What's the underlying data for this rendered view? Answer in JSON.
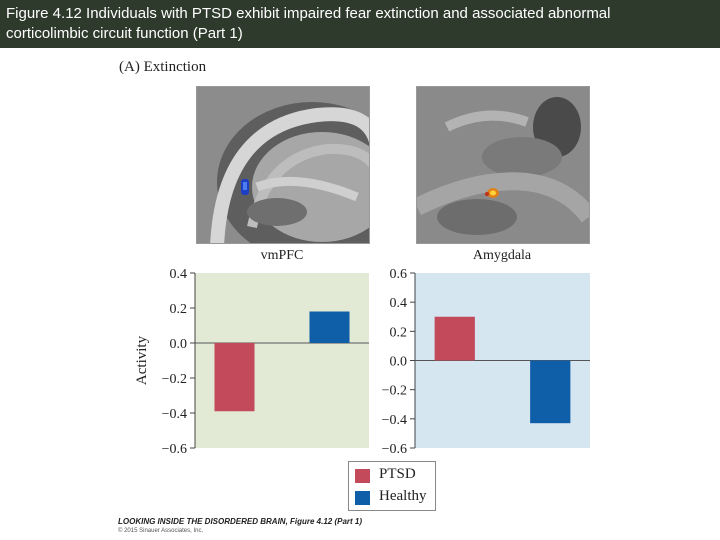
{
  "header": {
    "title_line1": "Figure 4.12 Individuals with PTSD exhibit impaired fear extinction and associated abnormal",
    "title_line2": "corticolimbic circuit function (Part 1)"
  },
  "panel_label": "(A) Extinction",
  "colors": {
    "ptsd": "#c24a5a",
    "healthy": "#0f5ea8",
    "vmpfc_bg": "#e2ead6",
    "amygdala_bg": "#d5e6f1"
  },
  "chart_data": [
    {
      "type": "bar",
      "title": "vmPFC",
      "xlabel": "",
      "ylabel": "Activity",
      "categories": [
        "PTSD",
        "Healthy"
      ],
      "values": [
        -0.39,
        0.18
      ],
      "ylim": [
        -0.6,
        0.4
      ],
      "yticks": [
        0.4,
        0.2,
        0.0,
        -0.2,
        -0.4,
        -0.6
      ],
      "ytick_labels": [
        "0.4",
        "0.2",
        "0.0",
        "−0.2",
        "−0.4",
        "−0.6"
      ],
      "grid": false
    },
    {
      "type": "bar",
      "title": "Amygdala",
      "xlabel": "",
      "ylabel": "",
      "categories": [
        "PTSD",
        "Healthy"
      ],
      "values": [
        0.3,
        -0.43
      ],
      "ylim": [
        -0.6,
        0.6
      ],
      "yticks": [
        0.6,
        0.4,
        0.2,
        0.0,
        -0.2,
        -0.4,
        -0.6
      ],
      "ytick_labels": [
        "0.6",
        "0.4",
        "0.2",
        "0.0",
        "−0.2",
        "−0.4",
        "−0.6"
      ],
      "grid": false
    }
  ],
  "legend": {
    "position": "bottom",
    "items": [
      {
        "label": "PTSD",
        "color": "#c24a5a"
      },
      {
        "label": "Healthy",
        "color": "#0f5ea8"
      }
    ]
  },
  "credit": {
    "line1": "LOOKING INSIDE THE DISORDERED BRAIN, Figure 4.12 (Part 1)",
    "line2": "© 2015 Sinauer Associates, Inc."
  }
}
